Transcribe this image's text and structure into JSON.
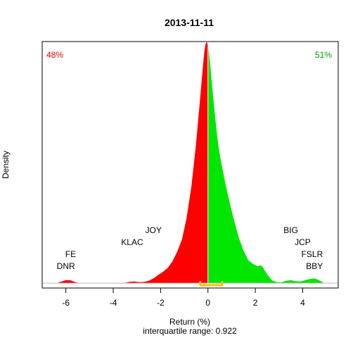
{
  "chart_data": {
    "type": "area",
    "title": "2013-11-11",
    "xlabel": "Return (%)",
    "subtitle": "interquartile range: 0.922",
    "ylabel": "Density",
    "xlim": [
      -7.0,
      5.5
    ],
    "ylim": [
      -0.02,
      1.0
    ],
    "x_ticks": [
      -6,
      -4,
      -2,
      0,
      2,
      4
    ],
    "grid": false,
    "colors": {
      "negative": "#FF0000",
      "positive": "#00E600",
      "iqr": "#FFC000",
      "baseline": "#BEBEBE"
    },
    "negative_share": "48%",
    "positive_share": "51%",
    "iqr_range": [
      -0.32,
      0.6
    ],
    "density": {
      "x": [
        -6.4,
        -6.2,
        -6.0,
        -5.8,
        -5.6,
        -5.4,
        -5.2,
        -5.0,
        -4.5,
        -4.0,
        -3.5,
        -3.3,
        -3.1,
        -2.9,
        -2.7,
        -2.5,
        -2.3,
        -2.1,
        -1.9,
        -1.7,
        -1.5,
        -1.3,
        -1.1,
        -0.9,
        -0.7,
        -0.5,
        -0.4,
        -0.3,
        -0.2,
        -0.15,
        -0.1,
        -0.05,
        0.0,
        0.05,
        0.1,
        0.2,
        0.3,
        0.4,
        0.5,
        0.7,
        0.9,
        1.1,
        1.3,
        1.5,
        1.7,
        1.9,
        2.1,
        2.2,
        2.3,
        2.5,
        2.7,
        2.9,
        3.1,
        3.3,
        3.5,
        3.7,
        3.9,
        4.1,
        4.3,
        4.5,
        4.7,
        4.9
      ],
      "y": [
        0.0,
        0.006,
        0.013,
        0.012,
        0.004,
        0.0,
        0.0,
        0.0,
        0.0,
        0.0,
        0.002,
        0.006,
        0.007,
        0.004,
        0.005,
        0.01,
        0.02,
        0.034,
        0.047,
        0.063,
        0.09,
        0.13,
        0.18,
        0.27,
        0.4,
        0.58,
        0.69,
        0.8,
        0.91,
        0.96,
        0.99,
        1.0,
        0.98,
        0.95,
        0.9,
        0.79,
        0.69,
        0.6,
        0.53,
        0.43,
        0.34,
        0.26,
        0.19,
        0.135,
        0.095,
        0.08,
        0.07,
        0.074,
        0.068,
        0.036,
        0.012,
        0.004,
        0.003,
        0.01,
        0.013,
        0.008,
        0.007,
        0.012,
        0.017,
        0.02,
        0.012,
        0.0
      ]
    },
    "annotations_left": [
      {
        "label": "DNR",
        "x": -6.0,
        "row": 0
      },
      {
        "label": "FE",
        "x": -5.8,
        "row": 1
      },
      {
        "label": "KLAC",
        "x": -3.2,
        "row": 2
      },
      {
        "label": "JOY",
        "x": -2.3,
        "row": 3
      }
    ],
    "annotations_right": [
      {
        "label": "BBY",
        "x": 4.5,
        "row": 0
      },
      {
        "label": "FSLR",
        "x": 4.4,
        "row": 1
      },
      {
        "label": "JCP",
        "x": 4.0,
        "row": 2
      },
      {
        "label": "BIG",
        "x": 3.5,
        "row": 3
      }
    ]
  }
}
